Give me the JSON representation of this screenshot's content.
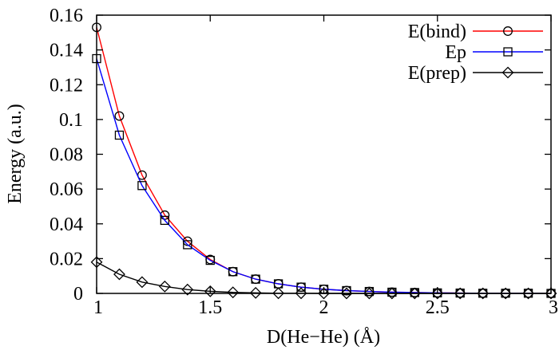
{
  "chart_data": {
    "type": "line",
    "xlabel": "D(He−He) (Å)",
    "ylabel": "Energy (a.u.)",
    "xlim": [
      1,
      3
    ],
    "ylim": [
      0,
      0.16
    ],
    "x_ticks": [
      1,
      1.5,
      2,
      2.5,
      3
    ],
    "x_tick_labels": [
      "1",
      "1.5",
      "2",
      "2.5",
      "3"
    ],
    "y_ticks": [
      0,
      0.02,
      0.04,
      0.06,
      0.08,
      0.1,
      0.12,
      0.14,
      0.16
    ],
    "y_tick_labels": [
      "0",
      "0.02",
      "0.04",
      "0.06",
      "0.08",
      "0.1",
      "0.12",
      "0.14",
      "0.16"
    ],
    "grid": false,
    "legend_position": "top-right",
    "x": [
      1.0,
      1.1,
      1.2,
      1.3,
      1.4,
      1.5,
      1.6,
      1.7,
      1.8,
      1.9,
      2.0,
      2.1,
      2.2,
      2.3,
      2.4,
      2.5,
      2.6,
      2.7,
      2.8,
      2.9,
      3.0
    ],
    "series": [
      {
        "name": "E(bind)",
        "color": "#ff0000",
        "marker": "circle",
        "values": [
          0.153,
          0.102,
          0.068,
          0.045,
          0.03,
          0.0195,
          0.0125,
          0.0082,
          0.0055,
          0.0036,
          0.0024,
          0.0016,
          0.0011,
          0.0007,
          0.0005,
          0.0003,
          0.0002,
          0.0001,
          0.0001,
          0.0001,
          0.0
        ]
      },
      {
        "name": "Ep",
        "color": "#0000ff",
        "marker": "square",
        "values": [
          0.135,
          0.091,
          0.062,
          0.042,
          0.028,
          0.019,
          0.0125,
          0.0082,
          0.0055,
          0.0036,
          0.0024,
          0.0016,
          0.0011,
          0.0007,
          0.0005,
          0.0003,
          0.0002,
          0.0001,
          0.0001,
          0.0001,
          0.0
        ]
      },
      {
        "name": "E(prep)",
        "color": "#000000",
        "marker": "diamond",
        "values": [
          0.018,
          0.011,
          0.0065,
          0.004,
          0.0022,
          0.0012,
          0.0006,
          0.0003,
          0.0001,
          0.0001,
          0.0,
          0.0,
          0.0,
          0.0,
          0.0,
          0.0,
          0.0,
          0.0,
          0.0,
          0.0,
          0.0
        ]
      }
    ]
  }
}
